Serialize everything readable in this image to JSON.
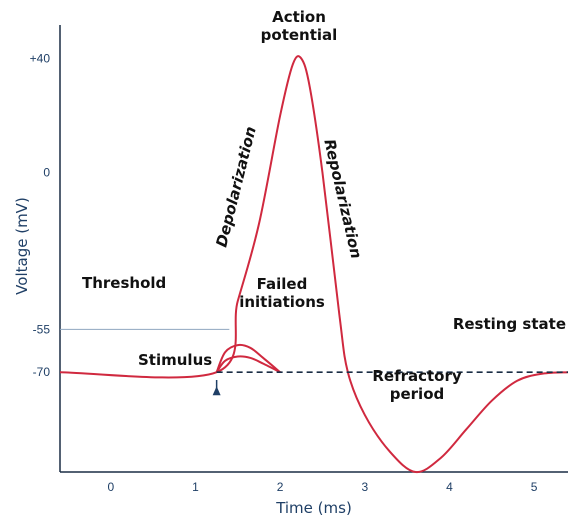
{
  "chart_data": {
    "type": "line",
    "title": "",
    "xlabel": "Time (ms)",
    "ylabel": "Voltage (mV)",
    "xlim": [
      -0.6,
      5.4
    ],
    "ylim": [
      -105,
      50
    ],
    "grid": false,
    "x_ticks": [
      0,
      1,
      2,
      3,
      4,
      5
    ],
    "y_ticks": [
      40,
      0,
      -55,
      -70
    ],
    "x_tick_labels": [
      "0",
      "1",
      "2",
      "3",
      "4",
      "5"
    ],
    "y_tick_labels": [
      "+40",
      "0",
      "-55",
      "-70"
    ],
    "threshold_value": -55,
    "resting_value": -70,
    "stimulus_x": 1.25,
    "series": [
      {
        "role": "action-potential",
        "color": "#d0293f",
        "x": [
          -0.6,
          1.25,
          1.5,
          1.75,
          2.0,
          2.15,
          2.25,
          2.35,
          2.5,
          2.7,
          2.8,
          3.0,
          3.3,
          3.6,
          3.9,
          4.2,
          4.5,
          4.8,
          5.1,
          5.4
        ],
        "y": [
          -70,
          -70,
          -45,
          -18,
          20,
          38,
          40,
          30,
          0,
          -50,
          -70,
          -85,
          -98,
          -105,
          -100,
          -90,
          -80,
          -73,
          -70.5,
          -70
        ]
      },
      {
        "role": "failed-initiation-1",
        "color": "#d0293f",
        "x": [
          1.25,
          1.35,
          1.5,
          1.65,
          1.8,
          2.0
        ],
        "y": [
          -70,
          -63,
          -60.5,
          -61.5,
          -65,
          -70
        ]
      },
      {
        "role": "failed-initiation-2",
        "color": "#d0293f",
        "x": [
          1.25,
          1.35,
          1.5,
          1.65,
          1.8,
          2.0
        ],
        "y": [
          -70,
          -66,
          -64.5,
          -65,
          -67,
          -70
        ]
      },
      {
        "role": "resting-baseline",
        "color": "#1a2d45",
        "style": "dashed",
        "x": [
          1.25,
          5.4
        ],
        "y": [
          -70,
          -70
        ]
      }
    ],
    "annotations": {
      "action_potential_1": "Action",
      "action_potential_2": "potential",
      "depolarization": "Depolarization",
      "repolarization": "Repolarization",
      "threshold": "Threshold",
      "failed_1": "Failed",
      "failed_2": "initiations",
      "resting_state": "Resting state",
      "stimulus": "Stimulus",
      "refractory_1": "Refractory",
      "refractory_2": "period"
    }
  },
  "colors": {
    "curve": "#d0293f",
    "axis": "#1a2d45",
    "axis_text": "#1f3f66",
    "threshold_line": "#8fa6bf",
    "stimulus_arrow": "#1f3f66"
  }
}
